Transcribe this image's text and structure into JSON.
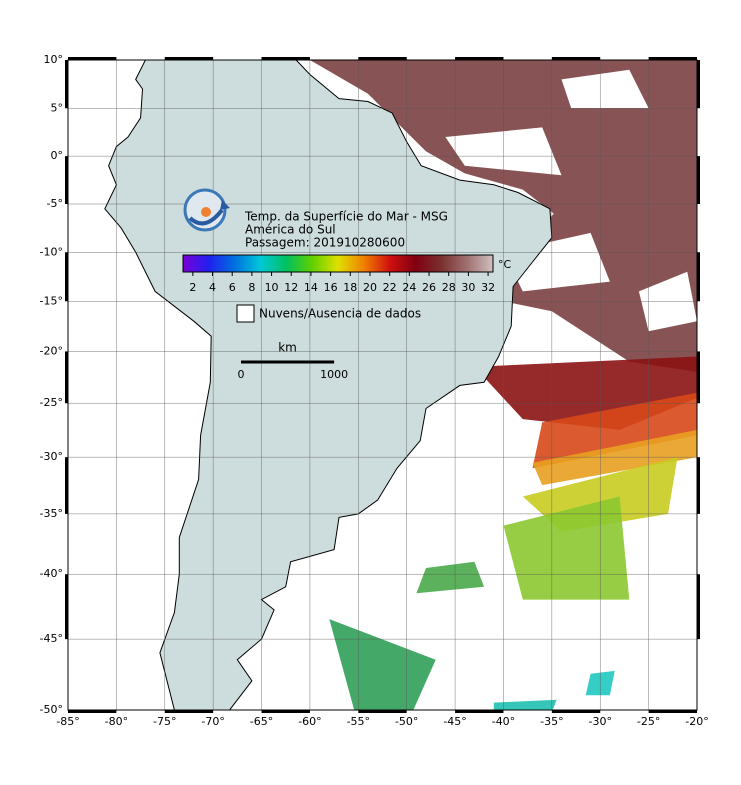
{
  "map": {
    "title": "Temp. da Superfície do Mar - MSG",
    "subtitle": "América do Sul",
    "pass": "Passagem: 201910280600",
    "xlim": [
      -85,
      -20
    ],
    "ylim": [
      -50,
      10
    ],
    "xticks": [
      {
        "value": -85,
        "label": "-85°"
      },
      {
        "value": -80,
        "label": "-80°"
      },
      {
        "value": -75,
        "label": "-75°"
      },
      {
        "value": -70,
        "label": "-70°"
      },
      {
        "value": -65,
        "label": "-65°"
      },
      {
        "value": -60,
        "label": "-60°"
      },
      {
        "value": -55,
        "label": "-55°"
      },
      {
        "value": -50,
        "label": "-50°"
      },
      {
        "value": -45,
        "label": "-45°"
      },
      {
        "value": -40,
        "label": "-40°"
      },
      {
        "value": -35,
        "label": "-35°"
      },
      {
        "value": -30,
        "label": "-30°"
      },
      {
        "value": -25,
        "label": "-25°"
      },
      {
        "value": -20,
        "label": "-20°"
      }
    ],
    "yticks": [
      {
        "value": 10,
        "label": "10°"
      },
      {
        "value": 5,
        "label": "5°"
      },
      {
        "value": 0,
        "label": "0°"
      },
      {
        "value": -5,
        "label": "-5°"
      },
      {
        "value": -10,
        "label": "-10°"
      },
      {
        "value": -15,
        "label": "-15°"
      },
      {
        "value": -20,
        "label": "-20°"
      },
      {
        "value": -25,
        "label": "-25°"
      },
      {
        "value": -30,
        "label": "-30°"
      },
      {
        "value": -35,
        "label": "-35°"
      },
      {
        "value": -40,
        "label": "-40°"
      },
      {
        "value": -45,
        "label": "-45°"
      },
      {
        "value": -50,
        "label": "-50°"
      }
    ],
    "grid": true,
    "colorbar": {
      "unit": "°C",
      "clim": [
        1,
        32.5
      ],
      "ticks": [
        2,
        4,
        6,
        8,
        10,
        12,
        14,
        16,
        18,
        20,
        22,
        24,
        26,
        28,
        30,
        32
      ],
      "colors": [
        "#7a00d8",
        "#2020f0",
        "#0070e0",
        "#00c8d8",
        "#00c060",
        "#60d000",
        "#e0e000",
        "#f08000",
        "#d01010",
        "#800010",
        "#7a3030",
        "#a07070",
        "#d0c0c0"
      ]
    },
    "legend": "Nuvens/Ausencia de dados",
    "scale": {
      "unit": "km",
      "ticks": [
        0,
        1000
      ]
    }
  }
}
